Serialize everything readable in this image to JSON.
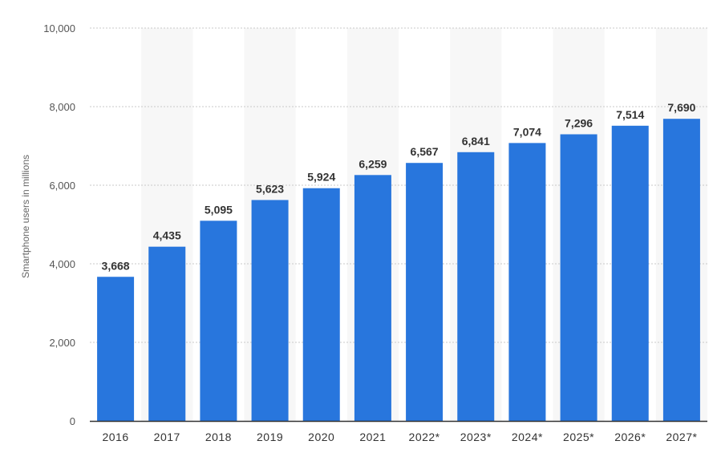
{
  "chart_data": {
    "type": "bar",
    "title": "",
    "xlabel": "",
    "ylabel": "Smartphone users in millions",
    "ylim": [
      0,
      10000
    ],
    "yticks": [
      0,
      2000,
      4000,
      6000,
      8000,
      10000
    ],
    "ytick_labels": [
      "0",
      "2,000",
      "4,000",
      "6,000",
      "8,000",
      "10,000"
    ],
    "categories": [
      "2016",
      "2017",
      "2018",
      "2019",
      "2020",
      "2021",
      "2022*",
      "2023*",
      "2024*",
      "2025*",
      "2026*",
      "2027*"
    ],
    "values": [
      3668,
      4435,
      5095,
      5623,
      5924,
      6259,
      6567,
      6841,
      7074,
      7296,
      7514,
      7690
    ],
    "value_labels": [
      "3,668",
      "4,435",
      "5,095",
      "5,623",
      "5,924",
      "6,259",
      "6,567",
      "6,841",
      "7,074",
      "7,296",
      "7,514",
      "7,690"
    ],
    "bar_color": "#2876dd",
    "band_color": "#f7f7f7",
    "grid": true,
    "legend": "none"
  }
}
